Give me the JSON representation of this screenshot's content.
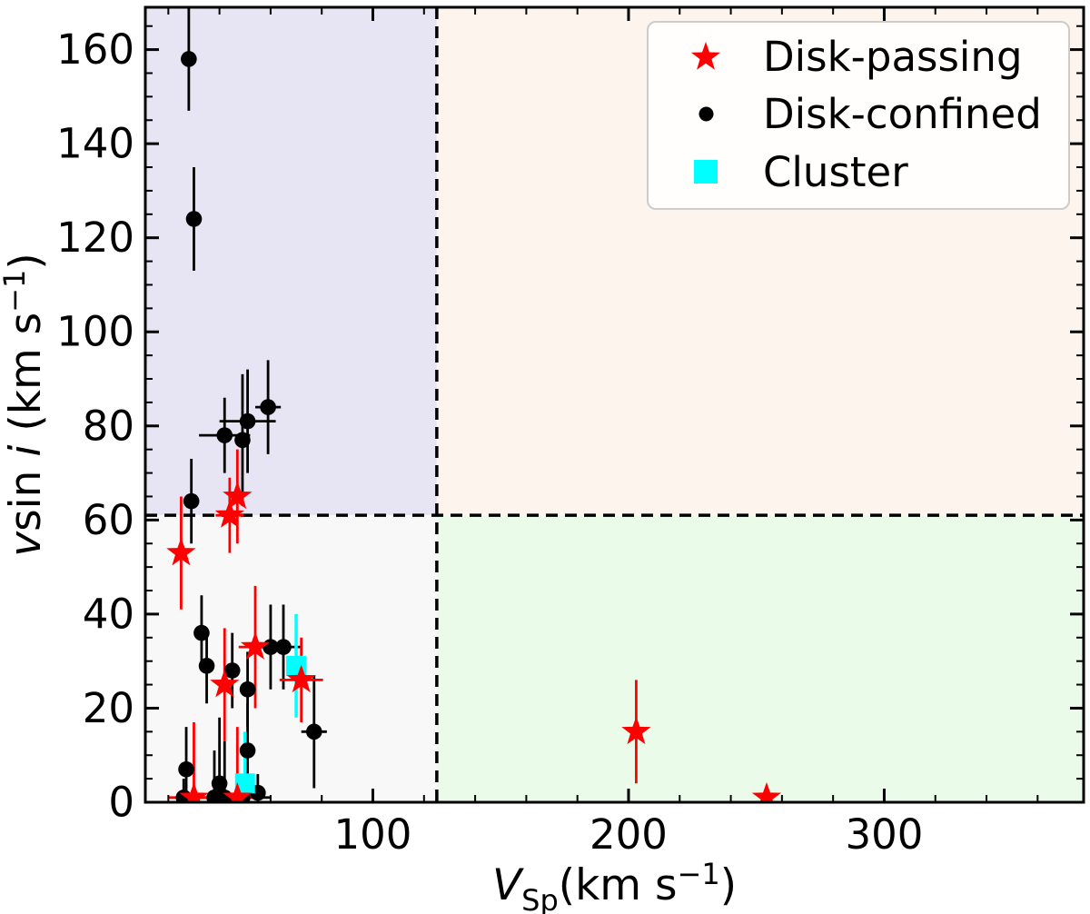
{
  "figure": {
    "background": "#ffffff"
  },
  "chart_data": {
    "type": "scatter",
    "xlabel_parts": [
      {
        "t": "V",
        "italic": true
      },
      {
        "t": "Sp",
        "sub": true
      },
      {
        "t": "(km s"
      },
      {
        "t": "−1",
        "sup": true
      },
      {
        "t": ")"
      }
    ],
    "ylabel_parts": [
      {
        "t": "v",
        "italic": true
      },
      {
        "t": "sin "
      },
      {
        "t": "i",
        "italic": true
      },
      {
        "t": " (km s"
      },
      {
        "t": "−1",
        "sup": true
      },
      {
        "t": ")"
      }
    ],
    "xlim": [
      11,
      378
    ],
    "ylim": [
      0,
      169
    ],
    "x_major_ticks": [
      100,
      200,
      300
    ],
    "x_minor_step": 20,
    "y_major_ticks": [
      0,
      20,
      40,
      60,
      80,
      100,
      120,
      140,
      160
    ],
    "y_minor_step": 5,
    "thresholds": {
      "vsp": 125,
      "vsini": 61
    },
    "threshold_line_color": "#000000",
    "quadrant_colors": {
      "top_left": "#e7e5f4",
      "top_right": "#fdf4ed",
      "bottom_left": "#f8f8f8",
      "bottom_right": "#eafbe9"
    },
    "series": [
      {
        "name": "Disk-passing",
        "marker": "star",
        "color": "#ff0000",
        "points": [
          {
            "x": 25,
            "y": 53,
            "yerr": 12
          },
          {
            "x": 47,
            "y": 65,
            "yerr": 10
          },
          {
            "x": 44,
            "y": 61,
            "yerr": 8,
            "xerr": 5.5
          },
          {
            "x": 42,
            "y": 25,
            "yerr": 12
          },
          {
            "x": 54,
            "y": 33,
            "yerr": 13,
            "xerr": 6.5
          },
          {
            "x": 72,
            "y": 26,
            "yerr": 9,
            "xerr": 8.5
          },
          {
            "x": 30,
            "y": 1,
            "yerr": 16,
            "xerr": 10
          },
          {
            "x": 47,
            "y": 1,
            "yerr": 15,
            "xerr": 7
          },
          {
            "x": 203,
            "y": 15,
            "yerr": 11
          },
          {
            "x": 254,
            "y": 1
          }
        ]
      },
      {
        "name": "Disk-confined",
        "marker": "circle",
        "color": "#000000",
        "points": [
          {
            "x": 28,
            "y": 158,
            "yerr": 11,
            "xerr": 3
          },
          {
            "x": 30,
            "y": 124,
            "yerr": 11
          },
          {
            "x": 59,
            "y": 84,
            "yerr": 10,
            "xerr": 5
          },
          {
            "x": 51,
            "y": 81,
            "yerr": 11,
            "xerr": 11
          },
          {
            "x": 42,
            "y": 78,
            "yerr": 8,
            "xerr": 10
          },
          {
            "x": 49,
            "y": 77,
            "yerr": 14
          },
          {
            "x": 29,
            "y": 64,
            "yerr": 9
          },
          {
            "x": 33,
            "y": 36,
            "yerr": 8
          },
          {
            "x": 35,
            "y": 29,
            "yerr": 8
          },
          {
            "x": 60,
            "y": 33,
            "yerr": 9
          },
          {
            "x": 65,
            "y": 33,
            "yerr": 9,
            "xerr": 7
          },
          {
            "x": 45,
            "y": 28,
            "yerr": 8
          },
          {
            "x": 51,
            "y": 24,
            "yerr": 8
          },
          {
            "x": 77,
            "y": 15,
            "yerr": 12,
            "xerr": 5
          },
          {
            "x": 51,
            "y": 11,
            "yerr": 10
          },
          {
            "x": 27,
            "y": 7,
            "yerr": 9
          },
          {
            "x": 26,
            "y": 1,
            "yerr": 4
          },
          {
            "x": 38,
            "y": 1,
            "yerr": 10
          },
          {
            "x": 40,
            "y": 4,
            "yerr": 14
          },
          {
            "x": 42,
            "y": 1,
            "yerr": 12,
            "xerr": 18
          },
          {
            "x": 49,
            "y": 1,
            "yerr": 5
          },
          {
            "x": 55,
            "y": 2,
            "yerr": 4
          }
        ]
      },
      {
        "name": "Cluster",
        "marker": "square",
        "color": "#00ffff",
        "points": [
          {
            "x": 70,
            "y": 29,
            "yerr": 11
          },
          {
            "x": 50,
            "y": 4,
            "yerr": 11
          }
        ]
      }
    ],
    "legend_position": "upper right"
  }
}
